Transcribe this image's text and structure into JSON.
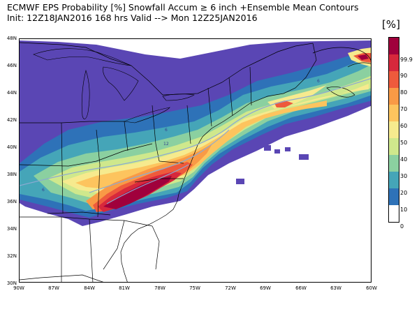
{
  "title": {
    "line1": "ECMWF EPS Probability [%] Snowfall Accum ≥ 6 inch  +Ensemble Mean Contours",
    "line2": "Init: 12Z18JAN2016   168 hrs Valid --> Mon 12Z25JAN2016"
  },
  "unit_label": "[%]",
  "map": {
    "lon_range": [
      -90,
      -60
    ],
    "lat_range": [
      30,
      48
    ],
    "lat_labels": [
      "48N",
      "46N",
      "44N",
      "42N",
      "40N",
      "38N",
      "36N",
      "34N",
      "32N",
      "30N"
    ],
    "lon_labels": [
      "90W",
      "87W",
      "84W",
      "81W",
      "78W",
      "75W",
      "72W",
      "69W",
      "66W",
      "63W",
      "60W"
    ],
    "contour_labels": [
      "6",
      "12",
      "6",
      "6"
    ],
    "background_color": "#ffffff",
    "boundary_color": "#000000",
    "contour_color": "#8caad2"
  },
  "colorbar": {
    "levels": [
      "99.9",
      "90",
      "80",
      "70",
      "60",
      "50",
      "40",
      "30",
      "20",
      "10",
      "0"
    ],
    "colors": [
      "#a0003c",
      "#d7283c",
      "#ee5a3c",
      "#f99a46",
      "#fdc45e",
      "#f6ea8e",
      "#cfe88c",
      "#8bd0a0",
      "#45a5b8",
      "#2e72b8",
      "#5a46b4"
    ]
  }
}
